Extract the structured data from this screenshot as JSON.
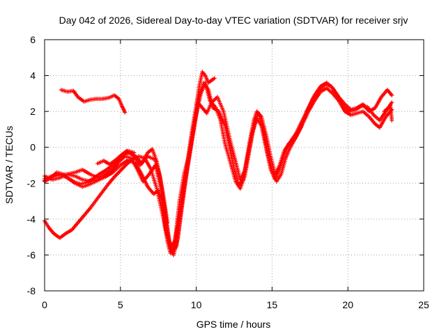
{
  "chart_data": {
    "type": "scatter",
    "title": "Day 042 of 2026, Sidereal Day-to-day VTEC variation (SDTVAR) for receiver srjv",
    "xlabel": "GPS time / hours",
    "ylabel": "SDTVAR / TECUs",
    "xlim": [
      0,
      25
    ],
    "ylim": [
      -8,
      6
    ],
    "xticks": [
      0,
      5,
      10,
      15,
      20,
      25
    ],
    "yticks": [
      -8,
      -6,
      -4,
      -2,
      0,
      2,
      4,
      6
    ],
    "xtick_labels": [
      "0",
      "5",
      "10",
      "15",
      "20",
      "25"
    ],
    "ytick_labels": [
      "-8",
      "-6",
      "-4",
      "-2",
      "0",
      "2",
      "4",
      "6"
    ],
    "grid": true,
    "marker": "plus",
    "color": "#ff0000",
    "series": [
      {
        "name": "arc-1",
        "points": [
          [
            1.1,
            3.2
          ],
          [
            1.5,
            3.1
          ],
          [
            1.9,
            3.15
          ],
          [
            2.2,
            2.8
          ],
          [
            2.6,
            2.55
          ],
          [
            3.0,
            2.65
          ],
          [
            3.4,
            2.7
          ],
          [
            3.8,
            2.7
          ],
          [
            4.2,
            2.75
          ],
          [
            4.6,
            2.9
          ],
          [
            4.9,
            2.7
          ],
          [
            5.1,
            2.3
          ],
          [
            5.3,
            1.95
          ]
        ]
      },
      {
        "name": "arc-2",
        "points": [
          [
            0.0,
            -4.1
          ],
          [
            0.3,
            -4.5
          ],
          [
            0.6,
            -4.8
          ],
          [
            1.0,
            -5.05
          ],
          [
            1.4,
            -4.8
          ],
          [
            1.8,
            -4.6
          ],
          [
            2.2,
            -4.2
          ],
          [
            2.6,
            -3.8
          ],
          [
            3.0,
            -3.4
          ],
          [
            3.4,
            -2.95
          ],
          [
            3.8,
            -2.5
          ],
          [
            4.2,
            -2.05
          ],
          [
            4.6,
            -1.65
          ],
          [
            5.0,
            -1.3
          ],
          [
            5.4,
            -0.95
          ],
          [
            5.8,
            -0.65
          ],
          [
            6.2,
            -0.5
          ],
          [
            6.6,
            -0.6
          ],
          [
            7.0,
            -1.2
          ],
          [
            7.4,
            -2.3
          ],
          [
            7.8,
            -3.8
          ],
          [
            8.1,
            -5.2
          ],
          [
            8.3,
            -5.9
          ],
          [
            8.5,
            -5.6
          ],
          [
            8.8,
            -4.3
          ],
          [
            9.1,
            -2.6
          ],
          [
            9.4,
            -1.0
          ],
          [
            9.7,
            0.8
          ],
          [
            10.0,
            2.3
          ],
          [
            10.2,
            3.4
          ],
          [
            10.4,
            4.2
          ],
          [
            10.6,
            4.0
          ],
          [
            10.8,
            3.6
          ],
          [
            11.2,
            3.85
          ]
        ]
      },
      {
        "name": "arc-3",
        "points": [
          [
            0.0,
            -1.6
          ],
          [
            0.5,
            -1.8
          ],
          [
            1.0,
            -1.7
          ],
          [
            1.5,
            -1.5
          ],
          [
            2.0,
            -1.4
          ],
          [
            2.5,
            -1.25
          ],
          [
            3.0,
            -1.5
          ],
          [
            3.5,
            -1.7
          ],
          [
            4.0,
            -1.5
          ],
          [
            4.5,
            -1.2
          ],
          [
            5.0,
            -0.5
          ],
          [
            5.4,
            -0.2
          ],
          [
            5.8,
            -0.4
          ],
          [
            6.3,
            -1.0
          ],
          [
            6.8,
            -0.5
          ],
          [
            7.3,
            -0.7
          ],
          [
            7.6,
            -1.6
          ],
          [
            8.0,
            -4.0
          ],
          [
            8.3,
            -5.6
          ],
          [
            8.6,
            -5.2
          ],
          [
            8.9,
            -3.0
          ],
          [
            9.2,
            -1.5
          ],
          [
            9.5,
            -0.5
          ],
          [
            9.8,
            1.0
          ],
          [
            10.1,
            2.5
          ],
          [
            10.4,
            2.2
          ],
          [
            10.7,
            1.9
          ],
          [
            11.0,
            2.5
          ],
          [
            11.4,
            2.8
          ],
          [
            11.8,
            2.0
          ],
          [
            12.2,
            0.5
          ],
          [
            12.6,
            -0.8
          ],
          [
            12.9,
            -1.8
          ],
          [
            13.2,
            -1.3
          ],
          [
            13.5,
            0.2
          ],
          [
            13.8,
            1.5
          ],
          [
            14.0,
            2.0
          ],
          [
            14.3,
            1.7
          ],
          [
            14.6,
            0.7
          ],
          [
            14.9,
            -0.5
          ],
          [
            15.2,
            -1.5
          ],
          [
            15.5,
            -1.0
          ],
          [
            15.8,
            -0.2
          ],
          [
            16.2,
            0.3
          ],
          [
            16.6,
            0.8
          ],
          [
            17.0,
            1.5
          ],
          [
            17.4,
            2.2
          ],
          [
            17.8,
            2.9
          ],
          [
            18.2,
            3.4
          ],
          [
            18.6,
            3.6
          ],
          [
            19.0,
            3.3
          ],
          [
            19.4,
            2.8
          ],
          [
            19.8,
            2.4
          ],
          [
            20.2,
            2.1
          ],
          [
            20.6,
            2.2
          ],
          [
            21.0,
            2.4
          ],
          [
            21.4,
            2.0
          ],
          [
            21.8,
            2.2
          ],
          [
            22.2,
            2.8
          ],
          [
            22.6,
            3.2
          ],
          [
            22.9,
            2.9
          ]
        ]
      },
      {
        "name": "arc-4",
        "points": [
          [
            0.0,
            -1.85
          ],
          [
            0.5,
            -1.65
          ],
          [
            1.0,
            -1.5
          ],
          [
            1.5,
            -1.7
          ],
          [
            2.0,
            -2.0
          ],
          [
            2.5,
            -2.2
          ],
          [
            3.0,
            -2.05
          ],
          [
            3.5,
            -1.85
          ],
          [
            4.0,
            -1.65
          ],
          [
            4.5,
            -1.4
          ],
          [
            5.0,
            -1.0
          ],
          [
            5.5,
            -0.7
          ],
          [
            6.0,
            -0.9
          ],
          [
            6.4,
            -1.5
          ],
          [
            6.8,
            -2.2
          ],
          [
            7.2,
            -2.6
          ],
          [
            7.5,
            -2.4
          ],
          [
            7.7,
            -2.8
          ],
          [
            8.0,
            -4.6
          ],
          [
            8.4,
            -5.9
          ],
          [
            8.7,
            -5.5
          ],
          [
            9.0,
            -3.6
          ],
          [
            9.3,
            -1.8
          ],
          [
            9.6,
            -0.2
          ],
          [
            9.9,
            1.4
          ],
          [
            10.2,
            2.8
          ],
          [
            10.5,
            3.6
          ],
          [
            10.8,
            3.2
          ],
          [
            11.1,
            2.2
          ],
          [
            11.5,
            2.0
          ],
          [
            11.9,
            1.2
          ],
          [
            12.2,
            0.0
          ],
          [
            12.5,
            -1.2
          ],
          [
            12.8,
            -2.1
          ],
          [
            13.1,
            -1.8
          ],
          [
            13.4,
            -0.5
          ],
          [
            13.7,
            0.8
          ],
          [
            14.0,
            1.6
          ],
          [
            14.3,
            1.2
          ],
          [
            14.6,
            0.0
          ],
          [
            14.9,
            -1.2
          ],
          [
            15.2,
            -1.8
          ],
          [
            15.5,
            -1.2
          ],
          [
            15.8,
            -0.4
          ],
          [
            16.1,
            0.2
          ],
          [
            16.5,
            0.5
          ],
          [
            16.9,
            1.1
          ],
          [
            17.3,
            2.0
          ],
          [
            17.7,
            2.7
          ],
          [
            18.1,
            3.2
          ],
          [
            18.5,
            3.5
          ],
          [
            18.9,
            3.4
          ],
          [
            19.3,
            2.9
          ],
          [
            19.7,
            2.3
          ],
          [
            20.1,
            2.0
          ],
          [
            20.5,
            2.1
          ],
          [
            20.9,
            2.3
          ],
          [
            21.3,
            2.25
          ],
          [
            21.7,
            1.8
          ],
          [
            22.1,
            1.5
          ],
          [
            22.5,
            2.0
          ],
          [
            22.9,
            2.5
          ]
        ]
      },
      {
        "name": "arc-5",
        "points": [
          [
            0.0,
            -1.75
          ],
          [
            0.5,
            -1.6
          ],
          [
            1.0,
            -1.55
          ],
          [
            1.5,
            -1.5
          ],
          [
            2.0,
            -1.6
          ],
          [
            2.5,
            -1.8
          ],
          [
            3.0,
            -1.9
          ],
          [
            3.5,
            -1.8
          ],
          [
            4.0,
            -1.6
          ],
          [
            4.5,
            -1.3
          ],
          [
            4.9,
            -0.8
          ],
          [
            5.3,
            -0.5
          ],
          [
            5.7,
            -0.6
          ],
          [
            6.1,
            -1.2
          ],
          [
            6.5,
            -1.9
          ],
          [
            6.9,
            -1.5
          ],
          [
            7.3,
            -1.0
          ],
          [
            7.6,
            -2.0
          ],
          [
            7.9,
            -3.3
          ],
          [
            8.2,
            -5.2
          ],
          [
            8.5,
            -6.0
          ],
          [
            8.8,
            -5.0
          ],
          [
            9.1,
            -3.0
          ],
          [
            9.4,
            -1.2
          ],
          [
            9.7,
            0.3
          ],
          [
            10.0,
            1.8
          ],
          [
            10.3,
            3.0
          ],
          [
            10.6,
            3.6
          ],
          [
            10.9,
            2.6
          ],
          [
            11.3,
            2.2
          ],
          [
            11.6,
            1.5
          ],
          [
            11.9,
            0.2
          ],
          [
            12.3,
            -1.0
          ],
          [
            12.6,
            -1.9
          ],
          [
            12.9,
            -2.3
          ],
          [
            13.2,
            -1.6
          ],
          [
            13.5,
            -0.2
          ],
          [
            13.8,
            1.2
          ],
          [
            14.1,
            1.9
          ],
          [
            14.4,
            1.0
          ],
          [
            14.7,
            -0.3
          ],
          [
            15.0,
            -1.3
          ],
          [
            15.3,
            -1.9
          ],
          [
            15.6,
            -1.5
          ],
          [
            15.9,
            -0.6
          ],
          [
            16.2,
            0.0
          ],
          [
            16.6,
            0.6
          ],
          [
            17.0,
            1.3
          ],
          [
            17.4,
            2.0
          ],
          [
            17.8,
            2.6
          ],
          [
            18.2,
            3.1
          ],
          [
            18.6,
            3.3
          ],
          [
            19.0,
            3.0
          ],
          [
            19.4,
            2.6
          ],
          [
            19.8,
            2.0
          ],
          [
            20.2,
            1.8
          ],
          [
            20.6,
            1.9
          ],
          [
            21.0,
            2.0
          ],
          [
            21.4,
            1.7
          ],
          [
            21.8,
            1.3
          ],
          [
            22.1,
            1.1
          ],
          [
            22.5,
            1.7
          ],
          [
            22.9,
            2.1
          ]
        ]
      },
      {
        "name": "arc-6",
        "points": [
          [
            0.0,
            -1.9
          ],
          [
            0.4,
            -1.7
          ],
          [
            0.8,
            -1.4
          ],
          [
            1.2,
            -1.5
          ],
          [
            1.6,
            -1.75
          ],
          [
            2.0,
            -1.95
          ],
          [
            2.4,
            -2.05
          ],
          [
            2.8,
            -1.95
          ],
          [
            3.2,
            -1.75
          ],
          [
            3.6,
            -1.5
          ],
          [
            4.0,
            -1.3
          ],
          [
            4.4,
            -1.05
          ],
          [
            4.8,
            -0.75
          ],
          [
            5.2,
            -0.45
          ],
          [
            5.6,
            -0.3
          ],
          [
            6.0,
            -0.5
          ],
          [
            6.4,
            -0.9
          ],
          [
            6.8,
            -0.3
          ],
          [
            7.1,
            -0.1
          ],
          [
            7.4,
            -0.8
          ],
          [
            7.8,
            -2.5
          ],
          [
            8.1,
            -4.2
          ]
        ]
      },
      {
        "name": "arc-7",
        "points": [
          [
            3.5,
            -0.9
          ],
          [
            3.9,
            -0.75
          ],
          [
            4.3,
            -0.95
          ],
          [
            4.7,
            -0.7
          ],
          [
            5.1,
            -0.4
          ],
          [
            5.5,
            -0.2
          ],
          [
            5.9,
            -0.3
          ]
        ]
      },
      {
        "name": "arc-8",
        "points": [
          [
            22.4,
            2.0
          ],
          [
            22.8,
            2.3
          ],
          [
            22.9,
            1.5
          ]
        ]
      }
    ]
  }
}
